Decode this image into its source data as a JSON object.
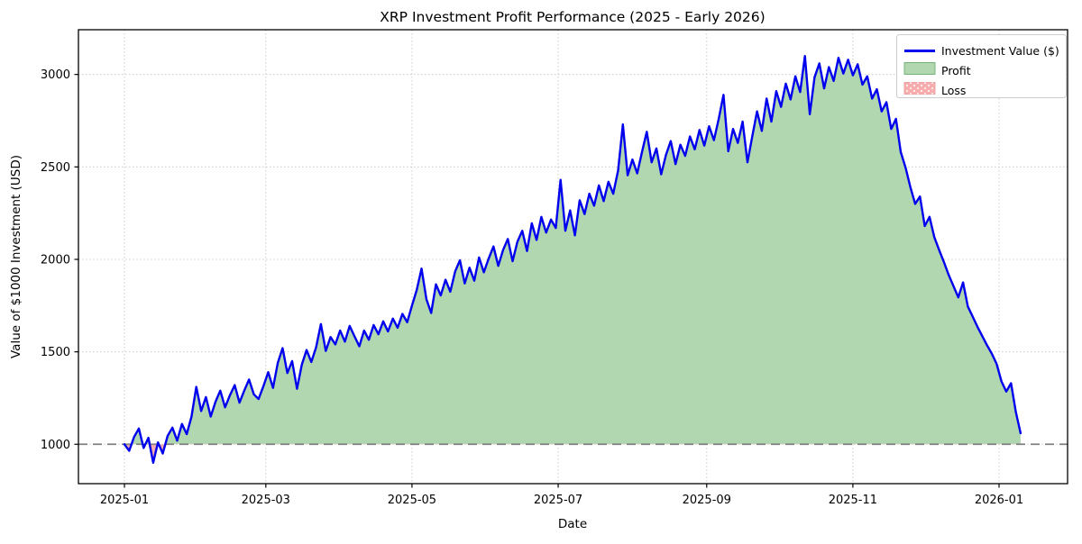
{
  "chart_data": {
    "type": "line",
    "title": "XRP Investment Profit Performance (2025 - Early 2026)",
    "xlabel": "Date",
    "ylabel": "Value of $1000 Investment (USD)",
    "series_name": "Investment Value ($)",
    "x_start_date": "2025-01-01",
    "x_step_days": 2,
    "baseline": 1000,
    "grid": true,
    "legend": {
      "position": "upper right",
      "entries": [
        {
          "label": "Investment Value ($)",
          "swatch": "line"
        },
        {
          "label": "Profit",
          "swatch": "patch"
        },
        {
          "label": "Loss",
          "swatch": "patch-dotted"
        }
      ]
    },
    "x_ticks": [
      {
        "day": 0,
        "label": "2025-01"
      },
      {
        "day": 59,
        "label": "2025-03"
      },
      {
        "day": 120,
        "label": "2025-05"
      },
      {
        "day": 181,
        "label": "2025-07"
      },
      {
        "day": 243,
        "label": "2025-09"
      },
      {
        "day": 304,
        "label": "2025-11"
      },
      {
        "day": 365,
        "label": "2026-01"
      }
    ],
    "y_ticks": [
      1000,
      1500,
      2000,
      2500,
      3000
    ],
    "xlim_days": [
      -19.2,
      393.6
    ],
    "ylim": [
      787,
      3242
    ],
    "colors": {
      "line": "#0000ee",
      "profit_fill": "#b0d7b0",
      "profit_border": "#77b377",
      "loss_fill": "#f7adad",
      "loss_border": "#eaa6a6",
      "baseline": "#808080",
      "grid": "#cccccc",
      "spine": "#000000"
    },
    "values": [
      1000,
      965,
      1040,
      1085,
      980,
      1035,
      900,
      1010,
      950,
      1045,
      1090,
      1020,
      1110,
      1055,
      1150,
      1310,
      1180,
      1255,
      1150,
      1230,
      1290,
      1200,
      1265,
      1320,
      1225,
      1290,
      1350,
      1270,
      1245,
      1315,
      1390,
      1305,
      1440,
      1520,
      1385,
      1450,
      1300,
      1430,
      1510,
      1445,
      1525,
      1650,
      1505,
      1580,
      1540,
      1615,
      1555,
      1640,
      1585,
      1530,
      1615,
      1565,
      1645,
      1595,
      1665,
      1610,
      1680,
      1630,
      1705,
      1660,
      1750,
      1835,
      1950,
      1785,
      1710,
      1865,
      1805,
      1890,
      1825,
      1935,
      1995,
      1870,
      1955,
      1885,
      2010,
      1930,
      2005,
      2070,
      1965,
      2050,
      2110,
      1990,
      2095,
      2155,
      2045,
      2195,
      2105,
      2230,
      2145,
      2215,
      2170,
      2430,
      2155,
      2265,
      2130,
      2320,
      2245,
      2355,
      2290,
      2400,
      2315,
      2420,
      2355,
      2480,
      2730,
      2455,
      2540,
      2465,
      2580,
      2690,
      2525,
      2600,
      2460,
      2565,
      2640,
      2515,
      2620,
      2560,
      2665,
      2595,
      2700,
      2615,
      2720,
      2645,
      2760,
      2890,
      2585,
      2705,
      2630,
      2745,
      2525,
      2665,
      2800,
      2695,
      2870,
      2745,
      2910,
      2825,
      2950,
      2865,
      2990,
      2905,
      3100,
      2785,
      2985,
      3060,
      2925,
      3040,
      2965,
      3090,
      3005,
      3080,
      2995,
      3055,
      2945,
      2990,
      2870,
      2920,
      2800,
      2850,
      2705,
      2760,
      2580,
      2495,
      2390,
      2300,
      2340,
      2180,
      2230,
      2120,
      2050,
      1985,
      1915,
      1855,
      1795,
      1875,
      1745,
      1690,
      1635,
      1585,
      1535,
      1490,
      1435,
      1340,
      1285,
      1330,
      1175,
      1060
    ]
  }
}
